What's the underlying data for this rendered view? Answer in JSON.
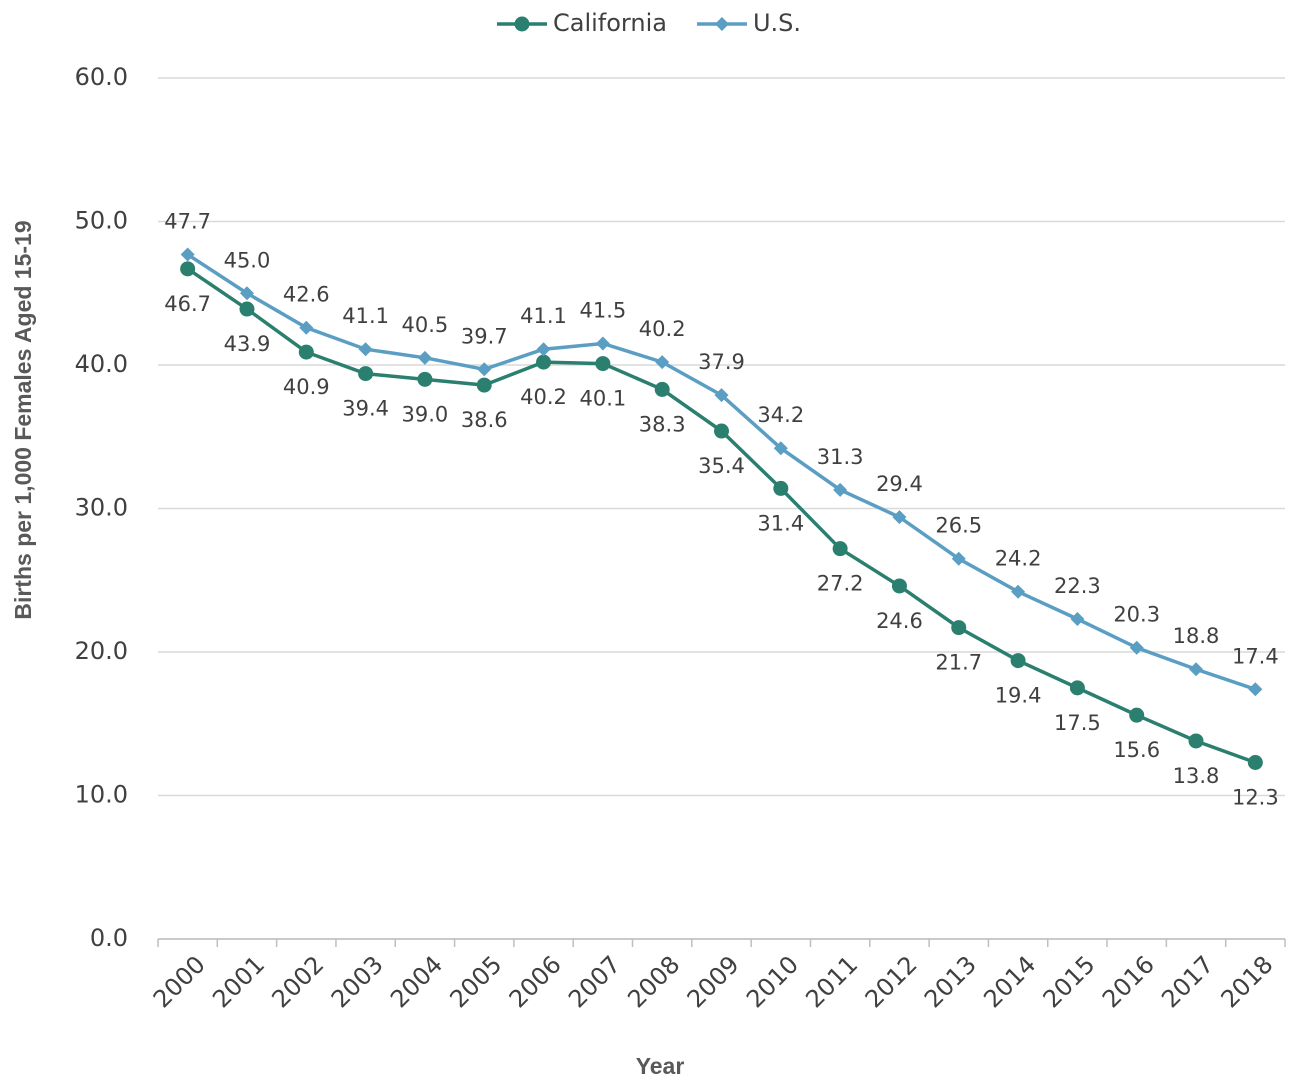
{
  "chart_data": {
    "type": "line",
    "y_label": "Births per 1,000  Females Aged 15-19",
    "x_label": "Year",
    "categories": [
      "2000",
      "2001",
      "2002",
      "2003",
      "2004",
      "2005",
      "2006",
      "2007",
      "2008",
      "2009",
      "2010",
      "2011",
      "2012",
      "2013",
      "2014",
      "2015",
      "2016",
      "2017",
      "2018"
    ],
    "series": [
      {
        "name": "California",
        "color": "#2a7f6e",
        "marker": "circle",
        "label_side": "below",
        "values": [
          46.7,
          43.9,
          40.9,
          39.4,
          39.0,
          38.6,
          40.2,
          40.1,
          38.3,
          35.4,
          31.4,
          27.2,
          24.6,
          21.7,
          19.4,
          17.5,
          15.6,
          13.8,
          12.3
        ],
        "value_labels": [
          "46.7",
          "43.9",
          "40.9",
          "39.4",
          "39.0",
          "38.6",
          "40.2",
          "40.1",
          "38.3",
          "35.4",
          "31.4",
          "27.2",
          "24.6",
          "21.7",
          "19.4",
          "17.5",
          "15.6",
          "13.8",
          "12.3"
        ]
      },
      {
        "name": "U.S.",
        "color": "#5b9ec4",
        "marker": "diamond",
        "label_side": "above",
        "values": [
          47.7,
          45.0,
          42.6,
          41.1,
          40.5,
          39.7,
          41.1,
          41.5,
          40.2,
          37.9,
          34.2,
          31.3,
          29.4,
          26.5,
          24.2,
          22.3,
          20.3,
          18.8,
          17.4
        ],
        "value_labels": [
          "47.7",
          "45.0",
          "42.6",
          "41.1",
          "40.5",
          "39.7",
          "41.1",
          "41.5",
          "40.2",
          "37.9",
          "34.2",
          "31.3",
          "29.4",
          "26.5",
          "24.2",
          "22.3",
          "20.3",
          "18.8",
          "17.4"
        ]
      }
    ],
    "ylim": [
      0,
      60
    ],
    "yticks": [
      {
        "value": 0,
        "label": "0.0"
      },
      {
        "value": 10,
        "label": "10.0"
      },
      {
        "value": 20,
        "label": "20.0"
      },
      {
        "value": 30,
        "label": "30.0"
      },
      {
        "value": 40,
        "label": "40.0"
      },
      {
        "value": 50,
        "label": "50.0"
      },
      {
        "value": 60,
        "label": "60.0"
      }
    ],
    "grid": true,
    "legend": "top"
  }
}
